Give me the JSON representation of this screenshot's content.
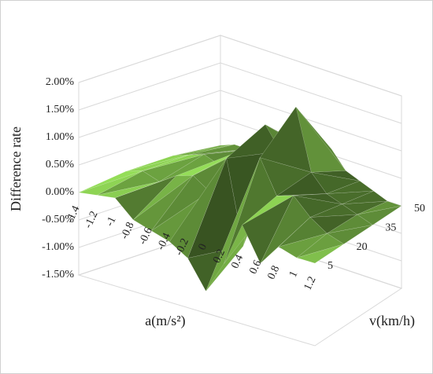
{
  "chart_data": {
    "type": "surface",
    "z_axis_title": "Difference rate",
    "x_axis_title": "a(m/s²)",
    "y_axis_title": "v(km/h)",
    "x_categories": [
      "-1.4",
      "-1.2",
      "-1",
      "-0.8",
      "-0.6",
      "-0.4",
      "-0.2",
      "0",
      "0.2",
      "0.4",
      "0.6",
      "0.8",
      "1",
      "1.2"
    ],
    "y_categories": [
      "5",
      "20",
      "35",
      "50"
    ],
    "values": [
      [
        0,
        0.05,
        0.1,
        -0.2,
        -0.3,
        -0.4,
        -0.6,
        -1.1,
        -0.5,
        0.3,
        -0.3,
        0.1,
        0,
        0
      ],
      [
        0.1,
        0.2,
        0.1,
        0.3,
        0.4,
        0.2,
        0.9,
        -0.6,
        1.1,
        0.5,
        0.6,
        0.3,
        0.1,
        0
      ],
      [
        0.1,
        0.2,
        0.3,
        0.2,
        0.5,
        0.7,
        1.2,
        0.8,
        1.7,
        0.6,
        0.3,
        0.2,
        0.1,
        0
      ],
      [
        0,
        0.1,
        0.1,
        0.2,
        0.3,
        0.3,
        0.5,
        0.4,
        0.6,
        0.3,
        0.2,
        0.1,
        0,
        0
      ]
    ],
    "color": "#7ab648",
    "zlim": [
      -1.5,
      2
    ],
    "zticks": [
      {
        "value": -1.5,
        "label": "-1.50%"
      },
      {
        "value": -1,
        "label": "-1.00%"
      },
      {
        "value": -0.5,
        "label": "-0.50%"
      },
      {
        "value": 0,
        "label": "0.00%"
      },
      {
        "value": 0.5,
        "label": "0.50%"
      },
      {
        "value": 1,
        "label": "1.00%"
      },
      {
        "value": 1.5,
        "label": "1.50%"
      },
      {
        "value": 2,
        "label": "2.00%"
      }
    ],
    "grid": true
  }
}
